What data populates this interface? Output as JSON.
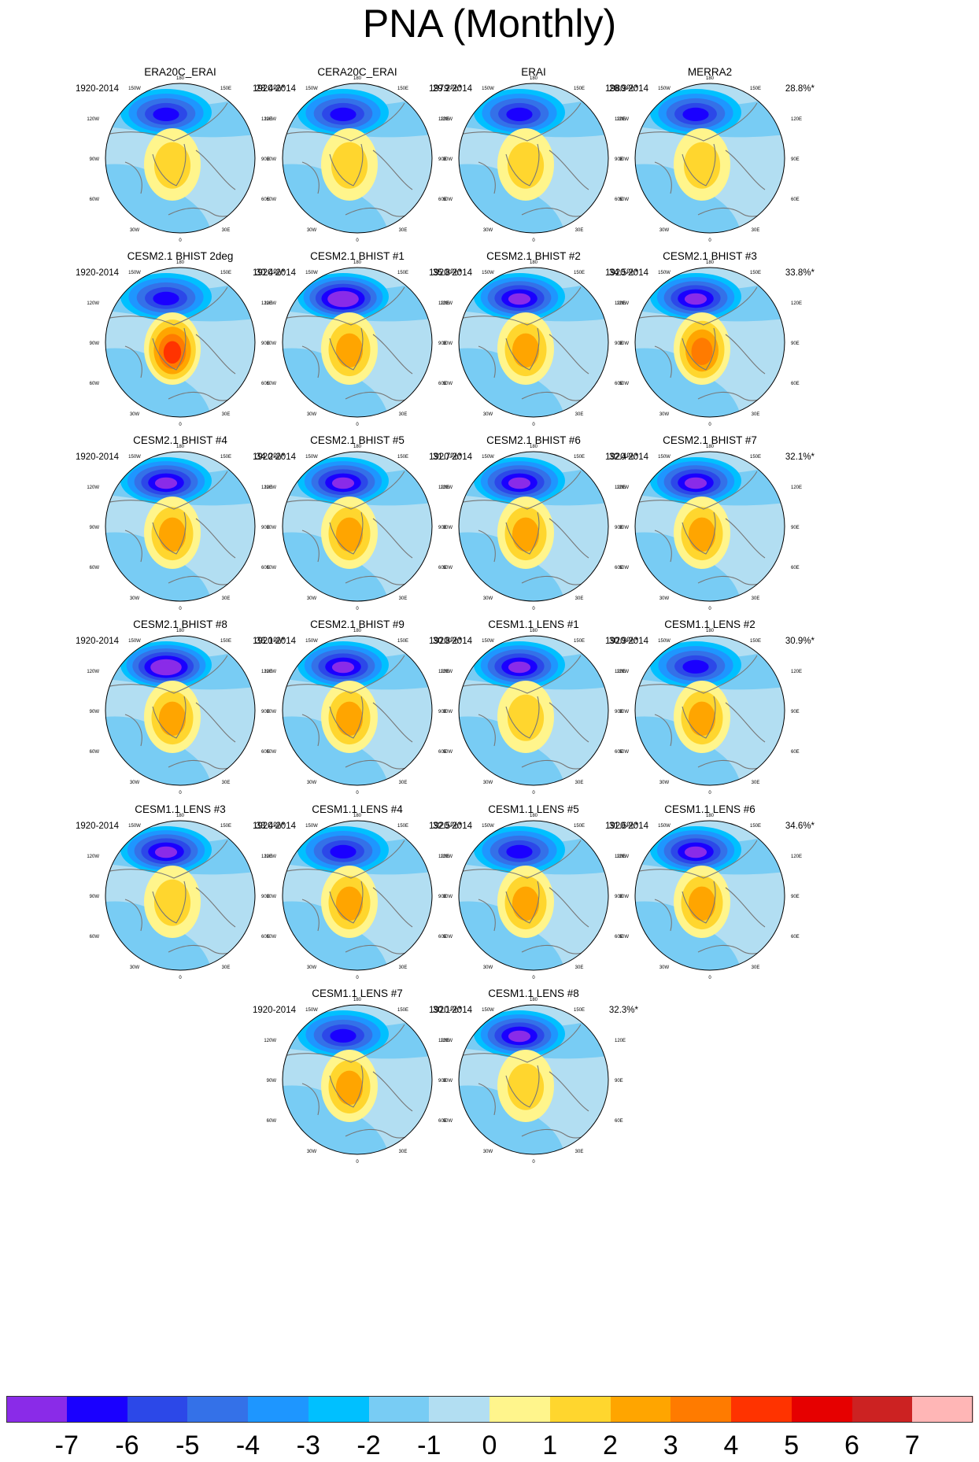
{
  "title": "PNA (Monthly)",
  "chart_data": {
    "type": "map",
    "projection": "north polar stereographic",
    "panels": [
      {
        "name": "ERA20C_ERAI",
        "period": "1920-2014",
        "variance_explained": "28.4%*",
        "low_max": -5,
        "high_max": 2
      },
      {
        "name": "CERA20C_ERAI",
        "period": "1920-2014",
        "variance_explained": "29.2%*",
        "low_max": -5,
        "high_max": 2
      },
      {
        "name": "ERAI",
        "period": "1979-2014",
        "variance_explained": "28.9%*",
        "low_max": -5,
        "high_max": 2
      },
      {
        "name": "MERRA2",
        "period": "1980-2014",
        "variance_explained": "28.8%*",
        "low_max": -5,
        "high_max": 2
      },
      {
        "name": "CESM2.1 BHIST 2deg",
        "period": "1920-2014",
        "variance_explained": "30.4%*",
        "low_max": -5,
        "high_max": 5
      },
      {
        "name": "CESM2.1 BHIST #1",
        "period": "1920-2014",
        "variance_explained": "35.8%*",
        "low_max": -7,
        "high_max": 3
      },
      {
        "name": "CESM2.1 BHIST #2",
        "period": "1920-2014",
        "variance_explained": "34.5%*",
        "low_max": -6,
        "high_max": 3
      },
      {
        "name": "CESM2.1 BHIST #3",
        "period": "1920-2014",
        "variance_explained": "33.8%*",
        "low_max": -6,
        "high_max": 4
      },
      {
        "name": "CESM2.1 BHIST #4",
        "period": "1920-2014",
        "variance_explained": "34.2%*",
        "low_max": -6,
        "high_max": 3
      },
      {
        "name": "CESM2.1 BHIST #5",
        "period": "1920-2014",
        "variance_explained": "31.7%*",
        "low_max": -6,
        "high_max": 3
      },
      {
        "name": "CESM2.1 BHIST #6",
        "period": "1920-2014",
        "variance_explained": "32.4%*",
        "low_max": -6,
        "high_max": 3
      },
      {
        "name": "CESM2.1 BHIST #7",
        "period": "1920-2014",
        "variance_explained": "32.1%*",
        "low_max": -6,
        "high_max": 3
      },
      {
        "name": "CESM2.1 BHIST #8",
        "period": "1920-2014",
        "variance_explained": "36.1%*",
        "low_max": -7,
        "high_max": 3
      },
      {
        "name": "CESM2.1 BHIST #9",
        "period": "1920-2014",
        "variance_explained": "30.8%*",
        "low_max": -6,
        "high_max": 3
      },
      {
        "name": "CESM1.1 LENS #1",
        "period": "1920-2014",
        "variance_explained": "30.9%*",
        "low_max": -6,
        "high_max": 2
      },
      {
        "name": "CESM1.1 LENS #2",
        "period": "1920-2014",
        "variance_explained": "30.9%*",
        "low_max": -5,
        "high_max": 3
      },
      {
        "name": "CESM1.1 LENS #3",
        "period": "1920-2014",
        "variance_explained": "33.4%*",
        "low_max": -6,
        "high_max": 2
      },
      {
        "name": "CESM1.1 LENS #4",
        "period": "1920-2014",
        "variance_explained": "32.5%*",
        "low_max": -5,
        "high_max": 3
      },
      {
        "name": "CESM1.1 LENS #5",
        "period": "1920-2014",
        "variance_explained": "31.6%*",
        "low_max": -5,
        "high_max": 3
      },
      {
        "name": "CESM1.1 LENS #6",
        "period": "1920-2014",
        "variance_explained": "34.6%*",
        "low_max": -6,
        "high_max": 3
      },
      {
        "name": "CESM1.1 LENS #7",
        "period": "1920-2014",
        "variance_explained": "30.1%*",
        "low_max": -5,
        "high_max": 3
      },
      {
        "name": "CESM1.1 LENS #8",
        "period": "1920-2014",
        "variance_explained": "32.3%*",
        "low_max": -6,
        "high_max": 2
      }
    ],
    "longitude_labels": [
      "180",
      "150W",
      "150E",
      "120W",
      "120E",
      "90W",
      "90E",
      "60W",
      "60E",
      "30W",
      "30E",
      "0"
    ],
    "colorbar": {
      "ticks": [
        "-7",
        "-6",
        "-5",
        "-4",
        "-3",
        "-2",
        "-1",
        "0",
        "1",
        "2",
        "3",
        "4",
        "5",
        "6",
        "7"
      ],
      "tick_values": [
        -7,
        -6,
        -5,
        -4,
        -3,
        -2,
        -1,
        0,
        1,
        2,
        3,
        4,
        5,
        6,
        7
      ],
      "colors": [
        "#8a2be8",
        "#1a00ff",
        "#2c48e8",
        "#3471e8",
        "#1e96ff",
        "#00c0ff",
        "#78ccf4",
        "#b2def2",
        "#fff58c",
        "#ffd62e",
        "#ffa500",
        "#ff7b00",
        "#ff3300",
        "#e60000",
        "#cc2222",
        "#ffb6b6"
      ]
    }
  }
}
